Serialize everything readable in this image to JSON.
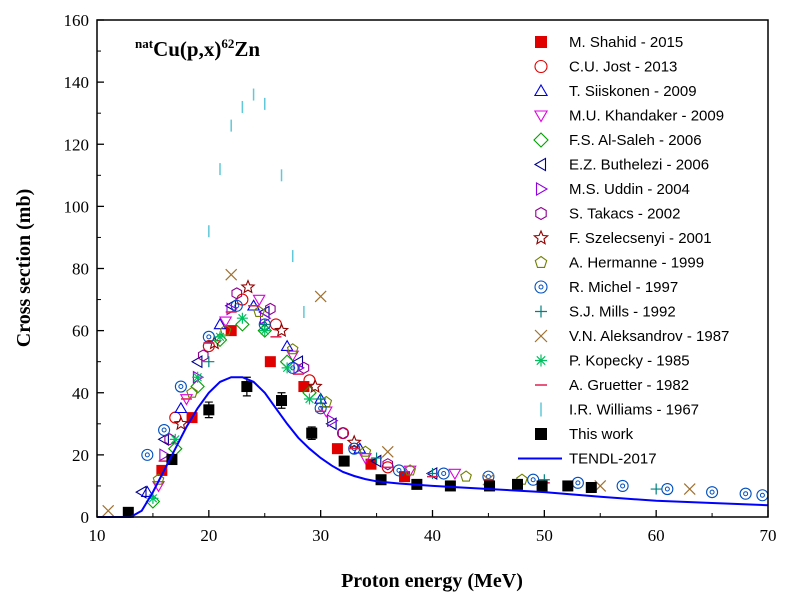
{
  "chart_data": {
    "type": "scatter",
    "title": {
      "pre": "nat",
      "main": "Cu(p,x)",
      "sup": "62",
      "post": "Zn"
    },
    "xlabel": "Proton energy (MeV)",
    "ylabel": "Cross section (mb)",
    "xlim": [
      10,
      70
    ],
    "ylim": [
      0,
      160
    ],
    "xticks": [
      10,
      20,
      30,
      40,
      50,
      60,
      70
    ],
    "yticks": [
      0,
      20,
      40,
      60,
      80,
      100,
      120,
      140,
      160
    ],
    "legend_position": "top-right",
    "series": [
      {
        "name": "M. Shahid - 2015",
        "marker": "square-filled",
        "color": "#e00000",
        "points": [
          [
            15.8,
            15
          ],
          [
            18.5,
            32
          ],
          [
            22.0,
            60
          ],
          [
            25.5,
            50
          ],
          [
            28.5,
            42
          ],
          [
            31.5,
            22
          ],
          [
            34.5,
            17
          ],
          [
            37.5,
            13
          ]
        ]
      },
      {
        "name": "C.U. Jost - 2013",
        "marker": "circle",
        "color": "#e00000",
        "points": [
          [
            17.0,
            32
          ],
          [
            20.0,
            55
          ],
          [
            23.0,
            70
          ],
          [
            26.0,
            62
          ],
          [
            29.0,
            44
          ],
          [
            32.0,
            27
          ],
          [
            36.0,
            16
          ]
        ]
      },
      {
        "name": "T. Siiskonen - 2009",
        "marker": "triangle-up",
        "color": "#0000e0",
        "points": [
          [
            14.5,
            8
          ],
          [
            17.5,
            35
          ],
          [
            21.0,
            62
          ],
          [
            24.0,
            68
          ],
          [
            27.0,
            55
          ],
          [
            30.0,
            38
          ],
          [
            33.5,
            22
          ]
        ]
      },
      {
        "name": "M.U. Khandaker - 2009",
        "marker": "triangle-down",
        "color": "#e000e0",
        "points": [
          [
            15.5,
            10
          ],
          [
            18.0,
            38
          ],
          [
            21.5,
            63
          ],
          [
            24.5,
            70
          ],
          [
            27.5,
            52
          ],
          [
            30.5,
            34
          ],
          [
            34.0,
            19
          ],
          [
            38.0,
            15
          ],
          [
            42.0,
            14
          ]
        ]
      },
      {
        "name": "F.S. Al-Saleh - 2006",
        "marker": "diamond",
        "color": "#00a000",
        "points": [
          [
            15.0,
            5
          ],
          [
            17.0,
            22
          ],
          [
            19.0,
            42
          ],
          [
            21.0,
            57
          ],
          [
            23.0,
            62
          ],
          [
            25.0,
            60
          ],
          [
            27.0,
            50
          ],
          [
            29.0,
            40
          ]
        ]
      },
      {
        "name": "E.Z. Buthelezi - 2006",
        "marker": "triangle-left",
        "color": "#000090",
        "points": [
          [
            14.0,
            8
          ],
          [
            16.0,
            25
          ],
          [
            19.0,
            50
          ],
          [
            22.0,
            68
          ],
          [
            25.0,
            66
          ],
          [
            28.0,
            50
          ],
          [
            31.0,
            30
          ],
          [
            35.0,
            18
          ],
          [
            40.0,
            14
          ]
        ]
      },
      {
        "name": "M.S. Uddin - 2004",
        "marker": "triangle-right",
        "color": "#9000e0",
        "points": [
          [
            16.0,
            20
          ],
          [
            19.0,
            45
          ],
          [
            22.0,
            67
          ],
          [
            25.0,
            64
          ],
          [
            28.0,
            48
          ],
          [
            31.0,
            31
          ]
        ]
      },
      {
        "name": "S. Takacs - 2002",
        "marker": "hexagon",
        "color": "#900090",
        "points": [
          [
            16.5,
            25
          ],
          [
            19.5,
            52
          ],
          [
            22.5,
            72
          ],
          [
            25.5,
            67
          ],
          [
            28.5,
            48
          ],
          [
            32.0,
            27
          ],
          [
            36.0,
            17
          ]
        ]
      },
      {
        "name": "F. Szelecsenyi - 2001",
        "marker": "star",
        "color": "#900000",
        "points": [
          [
            17.5,
            30
          ],
          [
            20.5,
            56
          ],
          [
            23.5,
            74
          ],
          [
            26.5,
            60
          ],
          [
            29.5,
            42
          ],
          [
            33.0,
            24
          ]
        ]
      },
      {
        "name": "A. Hermanne - 1999",
        "marker": "pentagon",
        "color": "#708000",
        "points": [
          [
            15.5,
            12
          ],
          [
            18.5,
            40
          ],
          [
            21.5,
            60
          ],
          [
            24.5,
            66
          ],
          [
            27.5,
            54
          ],
          [
            30.5,
            37
          ],
          [
            34.0,
            21
          ],
          [
            38.0,
            15
          ],
          [
            43.0,
            13
          ],
          [
            48.0,
            12
          ]
        ]
      },
      {
        "name": "R. Michel - 1997",
        "marker": "circle-dot",
        "color": "#0050c0",
        "points": [
          [
            14.5,
            20
          ],
          [
            16.0,
            28
          ],
          [
            17.5,
            42
          ],
          [
            20.0,
            58
          ],
          [
            22.5,
            68
          ],
          [
            25.0,
            62
          ],
          [
            27.5,
            48
          ],
          [
            30.0,
            35
          ],
          [
            33.0,
            22
          ],
          [
            37.0,
            15
          ],
          [
            41.0,
            14
          ],
          [
            45.0,
            13
          ],
          [
            49.0,
            12
          ],
          [
            53.0,
            11
          ],
          [
            57.0,
            10
          ],
          [
            61.0,
            9
          ],
          [
            65.0,
            8
          ],
          [
            68.0,
            7.5
          ],
          [
            69.5,
            7
          ]
        ]
      },
      {
        "name": "S.J. Mills - 1992",
        "marker": "plus",
        "color": "#008080",
        "points": [
          [
            20.0,
            50
          ],
          [
            25.0,
            62
          ],
          [
            30.0,
            38
          ],
          [
            35.0,
            19
          ],
          [
            40.0,
            14
          ],
          [
            50.0,
            12
          ],
          [
            60.0,
            9
          ]
        ]
      },
      {
        "name": "V.N. Aleksandrov - 1987",
        "marker": "x",
        "color": "#a07030",
        "points": [
          [
            11.0,
            2
          ],
          [
            22.0,
            78
          ],
          [
            30.0,
            71
          ],
          [
            36.0,
            21
          ],
          [
            45.0,
            12
          ],
          [
            55.0,
            10
          ],
          [
            63.0,
            9
          ]
        ]
      },
      {
        "name": "P. Kopecky - 1985",
        "marker": "asterisk",
        "color": "#00c060",
        "points": [
          [
            15.0,
            6
          ],
          [
            17.0,
            25
          ],
          [
            19.0,
            45
          ],
          [
            21.0,
            58
          ],
          [
            23.0,
            64
          ],
          [
            25.0,
            60
          ],
          [
            27.0,
            48
          ],
          [
            29.0,
            38
          ]
        ]
      },
      {
        "name": "A. Gruetter - 1982",
        "marker": "hbar",
        "color": "#e02050",
        "points": [
          [
            16.0,
            18
          ],
          [
            18.0,
            38
          ],
          [
            20.0,
            56
          ],
          [
            22.0,
            66
          ],
          [
            24.0,
            68
          ],
          [
            26.0,
            58
          ],
          [
            28.0,
            46
          ],
          [
            30.0,
            34
          ],
          [
            33.0,
            22
          ],
          [
            36.0,
            16
          ],
          [
            40.0,
            13
          ],
          [
            45.0,
            12
          ],
          [
            50.0,
            11
          ]
        ]
      },
      {
        "name": "I.R. Williams - 1967",
        "marker": "vbar",
        "color": "#60c8d8",
        "points": [
          [
            20.0,
            92
          ],
          [
            21.0,
            112
          ],
          [
            22.0,
            126
          ],
          [
            23.0,
            132
          ],
          [
            24.0,
            136
          ],
          [
            25.0,
            133
          ],
          [
            26.5,
            110
          ],
          [
            27.5,
            84
          ],
          [
            28.5,
            66
          ]
        ]
      },
      {
        "name": "This work",
        "marker": "square-filled",
        "color": "#000000",
        "points": [
          [
            12.8,
            1.5
          ],
          [
            16.7,
            18.5
          ],
          [
            20.0,
            34.5
          ],
          [
            23.4,
            42
          ],
          [
            26.5,
            37.5
          ],
          [
            29.2,
            27
          ],
          [
            32.1,
            18
          ],
          [
            35.4,
            12
          ],
          [
            38.6,
            10.5
          ],
          [
            41.6,
            10
          ],
          [
            45.1,
            10
          ],
          [
            47.6,
            10.5
          ],
          [
            49.8,
            10
          ],
          [
            52.1,
            10
          ],
          [
            54.2,
            9.5
          ]
        ],
        "errors": [
          0.8,
          1.5,
          2.5,
          3,
          2.5,
          2,
          1.5,
          1,
          0.8,
          0.8,
          0.8,
          0.8,
          0.8,
          0.8,
          0.8
        ]
      },
      {
        "name": "TENDL-2017",
        "marker": "line",
        "color": "#0000ff",
        "points": [
          [
            10,
            0
          ],
          [
            13,
            0
          ],
          [
            14,
            2
          ],
          [
            15,
            8
          ],
          [
            16,
            15
          ],
          [
            17,
            22
          ],
          [
            18,
            29
          ],
          [
            19,
            35
          ],
          [
            20,
            40
          ],
          [
            21,
            43.5
          ],
          [
            22,
            45
          ],
          [
            23,
            45
          ],
          [
            24,
            43.5
          ],
          [
            25,
            40
          ],
          [
            26,
            35
          ],
          [
            27,
            30
          ],
          [
            28,
            25.5
          ],
          [
            29,
            22
          ],
          [
            30,
            19
          ],
          [
            31,
            16.5
          ],
          [
            32,
            14.5
          ],
          [
            33,
            13.2
          ],
          [
            34,
            12.2
          ],
          [
            35,
            11.5
          ],
          [
            37,
            10.8
          ],
          [
            40,
            10
          ],
          [
            45,
            9
          ],
          [
            50,
            8
          ],
          [
            55,
            6.5
          ],
          [
            60,
            5.2
          ],
          [
            65,
            4.5
          ],
          [
            70,
            3.8
          ]
        ]
      }
    ]
  }
}
